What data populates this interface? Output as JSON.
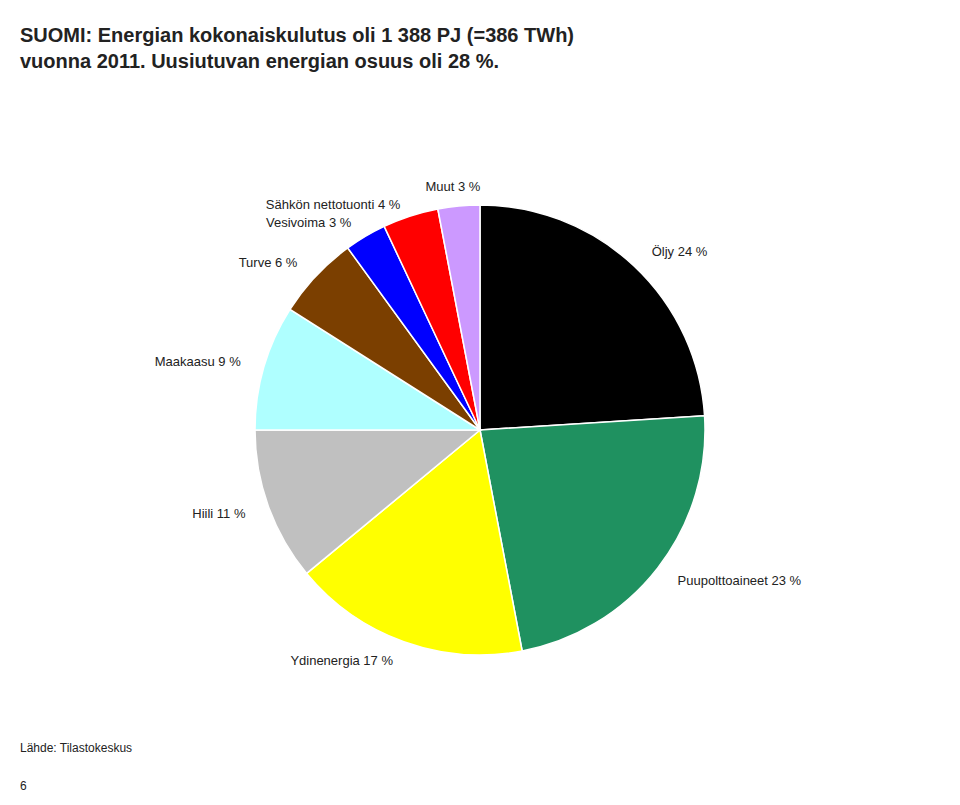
{
  "chart_data": {
    "type": "pie",
    "title": "SUOMI: Energian kokonaiskulutus oli 1 388 PJ (=386 TWh)",
    "subtitle": "vuonna 2011. Uusiutuvan energian osuus oli 28 %.",
    "categories": [
      "Öljy 24 %",
      "Puupolttoaineet 23 %",
      "Ydinenergia 17 %",
      "Hiili 11 %",
      "Maakaasu 9 %",
      "Turve 6 %",
      "Vesivoima 3 %",
      "Sähkön nettotuonti 4 %",
      "Muut 3 %"
    ],
    "values": [
      24,
      23,
      17,
      11,
      9,
      6,
      3,
      4,
      3
    ],
    "colors": [
      "#000000",
      "#1F9160",
      "#FFFF00",
      "#C0C0C0",
      "#AFFFFF",
      "#7B3F00",
      "#0000FF",
      "#FF0000",
      "#CC99FF"
    ],
    "annotations": [
      "Lähde: Tilastokeskus",
      "6"
    ]
  }
}
